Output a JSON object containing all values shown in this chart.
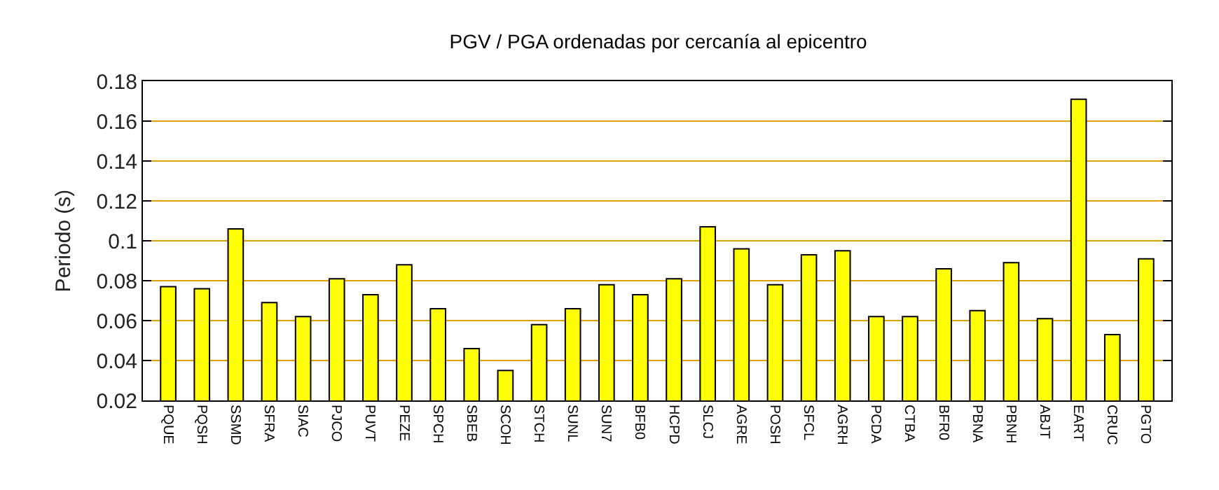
{
  "chart_data": {
    "type": "bar",
    "title": "PGV / PGA ordenadas por cercanía al epicentro",
    "ylabel": "Periodo (s)",
    "categories": [
      "PQUE",
      "PQSH",
      "SSMD",
      "SFRA",
      "SIAC",
      "PJCO",
      "PUVT",
      "PEZE",
      "SPCH",
      "SBEB",
      "SCOH",
      "STCH",
      "SUNL",
      "SUN7",
      "BFB0",
      "HCPD",
      "SLCJ",
      "AGRE",
      "POSH",
      "SFCL",
      "AGRH",
      "PCDA",
      "CTBA",
      "BFR0",
      "PBNA",
      "PBNH",
      "ABJT",
      "EART",
      "CRUC",
      "PGTO"
    ],
    "values": [
      0.077,
      0.076,
      0.106,
      0.069,
      0.062,
      0.081,
      0.073,
      0.088,
      0.066,
      0.046,
      0.035,
      0.058,
      0.066,
      0.078,
      0.073,
      0.081,
      0.107,
      0.096,
      0.078,
      0.093,
      0.095,
      0.062,
      0.062,
      0.086,
      0.065,
      0.089,
      0.061,
      0.171,
      0.053,
      0.091
    ],
    "color": "#ffff00",
    "ylim": [
      0.02,
      0.18
    ],
    "yticks": [
      0.02,
      0.04,
      0.06,
      0.08,
      0.1,
      0.12,
      0.14,
      0.16,
      0.18
    ],
    "grid": "y"
  }
}
